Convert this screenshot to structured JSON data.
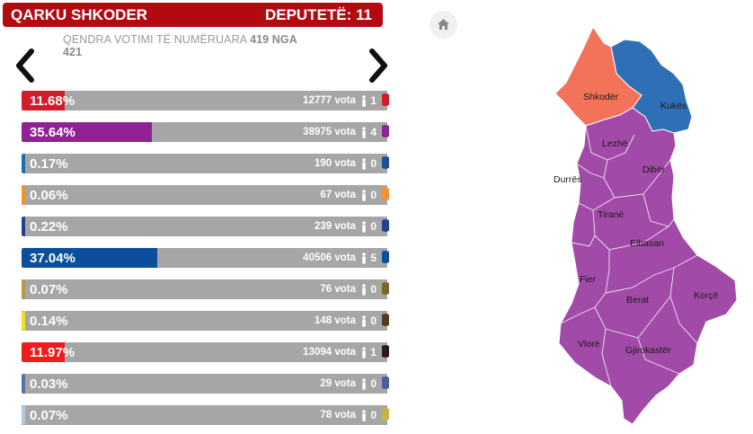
{
  "header": {
    "region": "QARKU SHKODER",
    "seats_label": "DEPUTETË: 11"
  },
  "counted": {
    "text": "QENDRA VOTIMI TË NUMËRUARA",
    "count": "419 NGA",
    "total": "421"
  },
  "nav": {
    "prev_icon": "chevron-left-icon",
    "next_icon": "chevron-right-icon",
    "home_icon": "home-icon"
  },
  "results": [
    {
      "percent": "11.68%",
      "share": 11.68,
      "votes": "12777 vota",
      "seats": "1",
      "color": "#d11d2b",
      "logo_color": "#d11d2b"
    },
    {
      "percent": "35.64%",
      "share": 35.64,
      "votes": "38975 vota",
      "seats": "4",
      "color": "#8e2394",
      "logo_color": "#8e2394"
    },
    {
      "percent": "0.17%",
      "share": 0.17,
      "votes": "190 vota",
      "seats": "0",
      "color": "#1f6cb0",
      "logo_color": "#1f4f99"
    },
    {
      "percent": "0.06%",
      "share": 0.06,
      "votes": "67 vota",
      "seats": "0",
      "color": "#f3922c",
      "logo_color": "#f3922c"
    },
    {
      "percent": "0.22%",
      "share": 0.22,
      "votes": "239 vota",
      "seats": "0",
      "color": "#26408a",
      "logo_color": "#26408a"
    },
    {
      "percent": "37.04%",
      "share": 37.04,
      "votes": "40506 vota",
      "seats": "5",
      "color": "#0b4f9c",
      "logo_color": "#0b4f9c"
    },
    {
      "percent": "0.07%",
      "share": 0.07,
      "votes": "76 vota",
      "seats": "0",
      "color": "#b29a4a",
      "logo_color": "#7a6a2a"
    },
    {
      "percent": "0.14%",
      "share": 0.14,
      "votes": "148 vota",
      "seats": "0",
      "color": "#f0e022",
      "logo_color": "#5a3a1a"
    },
    {
      "percent": "11.97%",
      "share": 11.97,
      "votes": "13094 vota",
      "seats": "1",
      "color": "#ee1c1c",
      "logo_color": "#2a1a1a"
    },
    {
      "percent": "0.03%",
      "share": 0.03,
      "votes": "29 vota",
      "seats": "0",
      "color": "#5a6fa8",
      "logo_color": "#4a5f98"
    },
    {
      "percent": "0.07%",
      "share": 0.07,
      "votes": "78 vota",
      "seats": "0",
      "color": "#b5c8d8",
      "logo_color": "#c9b24a"
    }
  ],
  "map": {
    "regions": [
      "Shkodër",
      "Kukës",
      "Lezhë",
      "Dibër",
      "Durrës",
      "Tiranë",
      "Elbasan",
      "Fier",
      "Berat",
      "Korçë",
      "Vlorë",
      "Gjirokastër"
    ],
    "colors": {
      "orange": "#f2735a",
      "blue": "#2f6fb5",
      "purple": "#a24aa8"
    }
  }
}
